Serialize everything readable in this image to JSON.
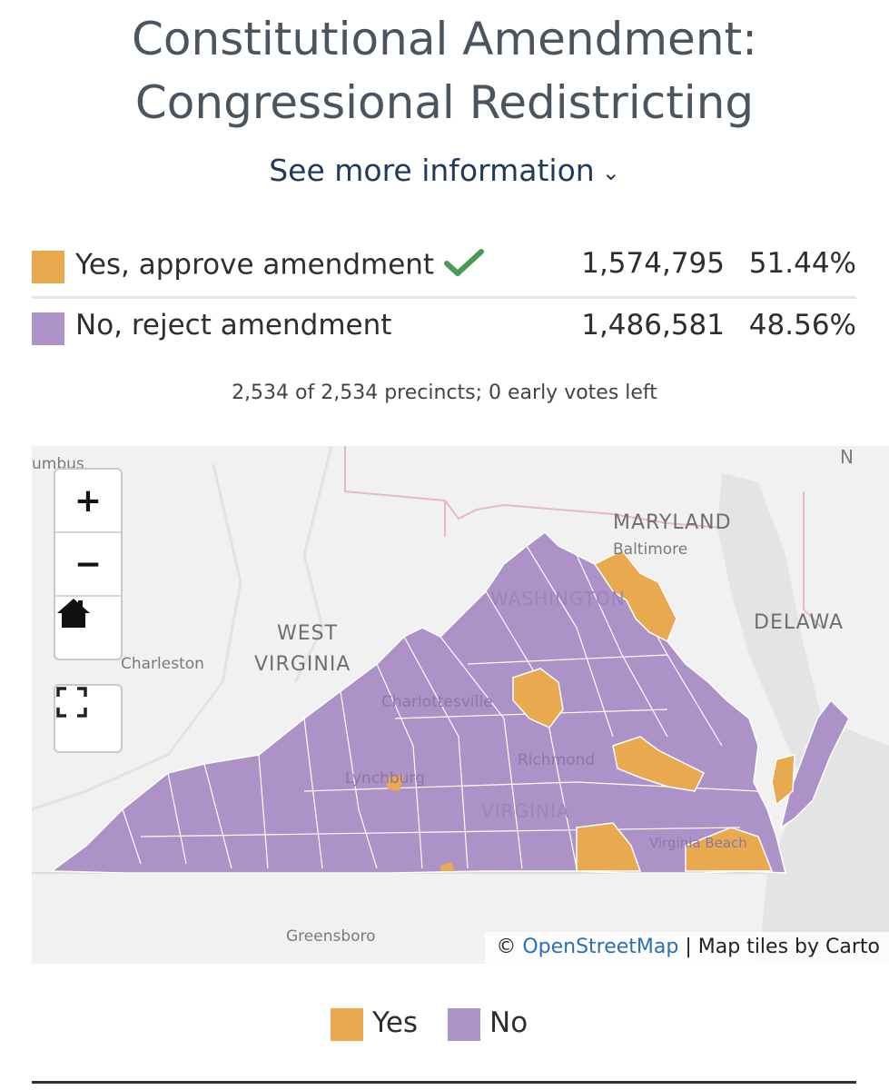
{
  "title_line1": "Constitutional Amendment:",
  "title_line2": "Congressional Redistricting",
  "more_info_label": "See more information",
  "chevron_icon": "chevron-down-icon",
  "results": [
    {
      "label": "Yes, approve amendment",
      "votes": "1,574,795",
      "percent": "51.44%",
      "color": "#e9a94e",
      "winner": true
    },
    {
      "label": "No, reject amendment",
      "votes": "1,486,581",
      "percent": "48.56%",
      "color": "#ad92c8",
      "winner": false
    }
  ],
  "winner_icon": "checkmark-icon",
  "precincts_text": "2,534 of 2,534 precincts; 0 early votes left",
  "map": {
    "state_labels": [
      "MARYLAND",
      "DELAWA",
      "WEST",
      "VIRGINIA",
      "WASHINGTON",
      "VIRGINIA"
    ],
    "city_labels": [
      "umbus",
      "Baltimore",
      "Charleston",
      "Charlottesville",
      "Richmond",
      "Lynchburg",
      "Greensboro",
      "Virginia Beach",
      "N"
    ],
    "controls": {
      "zoom_in": "+",
      "zoom_out": "−",
      "home_icon": "home-icon",
      "fullscreen_icon": "fullscreen-icon"
    },
    "attribution_prefix": "© ",
    "attribution_link": "OpenStreetMap",
    "attribution_suffix": " | Map tiles by Carto",
    "colors": {
      "yes": "#e9a94e",
      "no": "#ad92c8",
      "background": "#f1f1f1",
      "water": "#e6e6e6"
    }
  },
  "legend": [
    {
      "label": "Yes",
      "color": "#e9a94e"
    },
    {
      "label": "No",
      "color": "#ad92c8"
    }
  ]
}
